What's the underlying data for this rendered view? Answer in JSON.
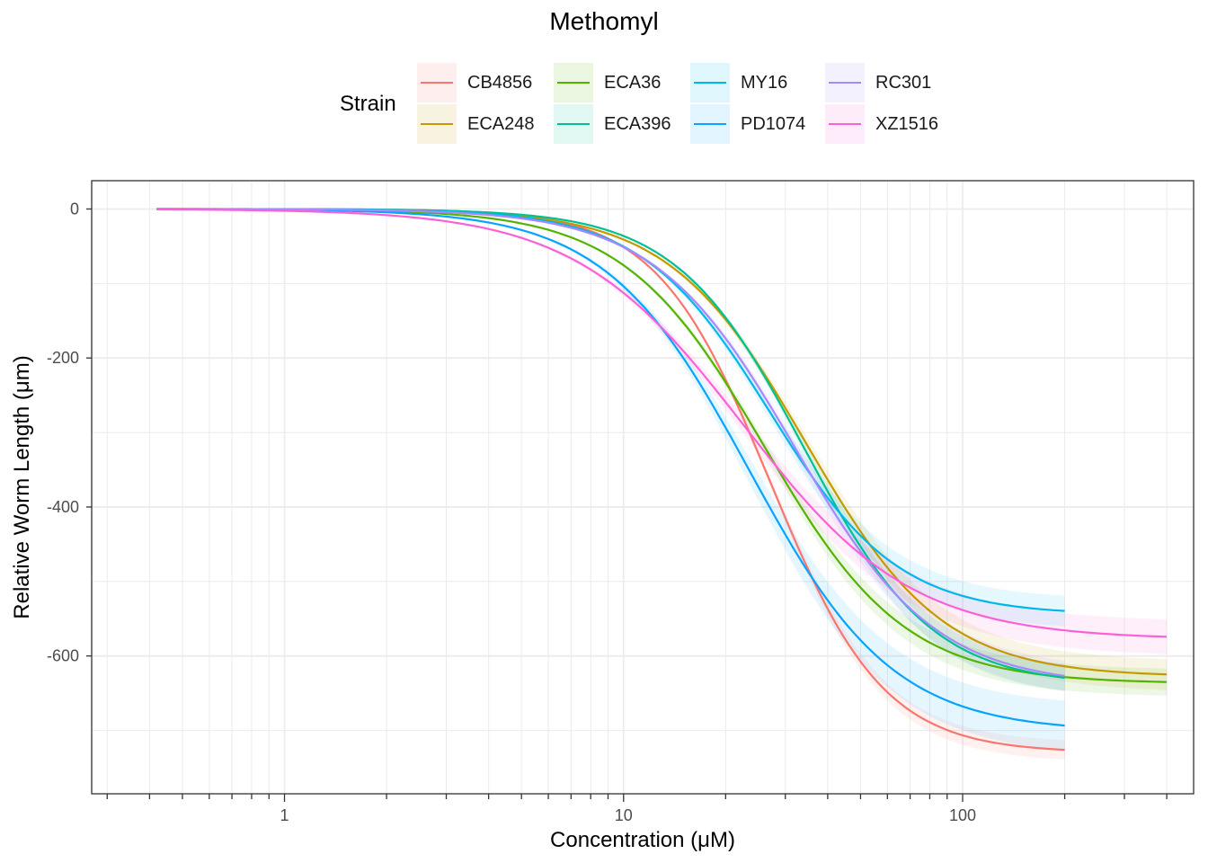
{
  "chart_data": {
    "type": "line",
    "title": "Methomyl",
    "xlabel": "Concentration (μM)",
    "ylabel": "Relative Worm Length (μm)",
    "xscale": "log10",
    "xlim": [
      0.27,
      480
    ],
    "ylim": [
      -785,
      38
    ],
    "x_ticks": [
      1,
      10,
      100
    ],
    "x_tick_labels": [
      "1",
      "10",
      "100"
    ],
    "y_ticks": [
      0,
      -200,
      -400,
      -600
    ],
    "y_tick_labels": [
      "0",
      "-200",
      "-400",
      "-600"
    ],
    "grid": true,
    "legend_title": "Strain",
    "legend_position": "top",
    "series": [
      {
        "name": "CB4856",
        "color": "#F8766D",
        "x_max": 200,
        "y_min": -730,
        "ec50": 27.0,
        "hill": 2.6,
        "ribbon": 10
      },
      {
        "name": "ECA248",
        "color": "#C49A00",
        "x_max": 400,
        "y_min": -628,
        "ec50": 34.5,
        "hill": 2.15,
        "ribbon": 16
      },
      {
        "name": "ECA36",
        "color": "#53B400",
        "x_max": 400,
        "y_min": -637,
        "ec50": 26.0,
        "hill": 2.1,
        "ribbon": 14
      },
      {
        "name": "ECA396",
        "color": "#00C094",
        "x_max": 200,
        "y_min": -640,
        "ec50": 34.0,
        "hill": 2.3,
        "ribbon": 14
      },
      {
        "name": "MY16",
        "color": "#00B6EB",
        "x_max": 200,
        "y_min": -545,
        "ec50": 27.0,
        "hill": 2.3,
        "ribbon": 16
      },
      {
        "name": "PD1074",
        "color": "#06A4FF",
        "x_max": 200,
        "y_min": -702,
        "ec50": 23.5,
        "hill": 2.05,
        "ribbon": 26
      },
      {
        "name": "RC301",
        "color": "#A58AFF",
        "x_max": 200,
        "y_min": -640,
        "ec50": 32.0,
        "hill": 2.1,
        "ribbon": 16
      },
      {
        "name": "XZ1516",
        "color": "#FB61D7",
        "x_max": 400,
        "y_min": -578,
        "ec50": 22.5,
        "hill": 1.75,
        "ribbon": 18
      }
    ]
  }
}
